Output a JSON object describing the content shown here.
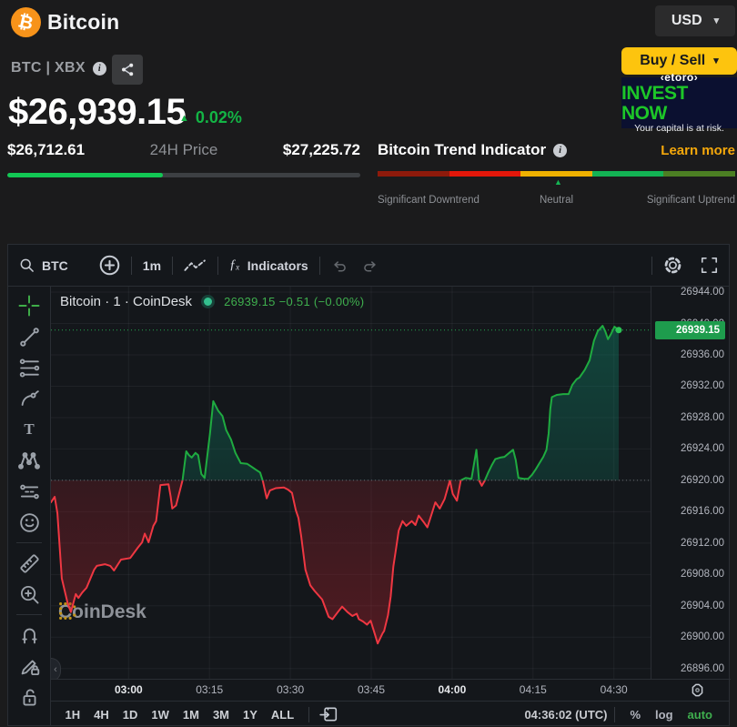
{
  "header": {
    "coin_name": "Bitcoin",
    "currency": "USD",
    "pair": "BTC | XBX",
    "price": "$26,939.15",
    "change_pct": "0.02%",
    "range_low": "$26,712.61",
    "range_label": "24H Price",
    "range_high": "$27,225.72",
    "range_fill_pct": 44,
    "buy_sell_label": "Buy / Sell",
    "ad": {
      "brand": "‹etoro›",
      "headline": "INVEST NOW",
      "disclaimer": "Your capital is at risk."
    }
  },
  "trend_indicator": {
    "title": "Bitcoin Trend Indicator",
    "learn_more": "Learn more",
    "left_label": "Significant Downtrend",
    "center_label": "Neutral",
    "right_label": "Significant Uptrend",
    "segment_colors": [
      "#8e1a0b",
      "#e3170a",
      "#eeb000",
      "#13b354",
      "#4c7f23"
    ],
    "marker_pct": 50.5
  },
  "chart": {
    "toolbar": {
      "symbol": "BTC",
      "interval": "1m",
      "fx_glyph": "ƒₓ",
      "indicators_label": "Indicators"
    },
    "legend": {
      "series_title": "Bitcoin · 1 · CoinDesk",
      "values": "26939.15 −0.51 (−0.00%)"
    },
    "watermark": "CoinDesk",
    "price_label": "26939.15",
    "left_tools": [
      "crosshair",
      "trend-line",
      "fib-retracement",
      "brush",
      "text",
      "xabcd-pattern",
      "forecast",
      "emoji",
      "ruler",
      "zoom-in",
      "magnet",
      "drawing-mode-lock",
      "lock-all-drawings"
    ],
    "bottom": {
      "ranges": [
        "1H",
        "4H",
        "1D",
        "1W",
        "1M",
        "3M",
        "1Y",
        "ALL"
      ],
      "clock": "04:36:02 (UTC)",
      "percent_label": "%",
      "log_label": "log",
      "auto_label": "auto"
    }
  },
  "icons": {
    "btc_glyph": "₿",
    "info_glyph": "i",
    "caret_glyph": "▾",
    "up_triangle": "▲",
    "text_tool_glyph": "T",
    "collapse_glyph": "‹"
  },
  "colors": {
    "bitcoin_orange": "#f7931a",
    "accent_green": "#13b545",
    "range_bar_green": "#12c854",
    "line_green": "#1fab40",
    "line_red": "#ef3742",
    "price_tag_green": "#1e9c4d",
    "learn_more_gold": "#f5a80b",
    "buy_sell_yellow": "#fdc40e",
    "ad_green": "#1dc628",
    "auto_green": "#3faf4e"
  },
  "chart_data": {
    "type": "line",
    "title": "Bitcoin · 1 · CoinDesk",
    "interval": "1m",
    "style": "baseline",
    "baseline": 26920.0,
    "last_price": 26939.15,
    "change": -0.51,
    "change_pct": "-0.00%",
    "grid": true,
    "x_unit": "minutes after 03:00 UTC",
    "x_ticks": [
      "03:00",
      "03:15",
      "03:30",
      "03:45",
      "04:00",
      "04:15",
      "04:30"
    ],
    "x_tick_minutes": [
      0,
      15,
      30,
      45,
      60,
      75,
      90
    ],
    "x_emphasized": [
      0,
      4
    ],
    "y_ticks": [
      26944,
      26940,
      26936,
      26932,
      26928,
      26924,
      26920,
      26916,
      26912,
      26908,
      26904,
      26900,
      26896
    ],
    "y_range": [
      26894.7,
      26944.7
    ],
    "x_range": [
      -14.4,
      96.8
    ],
    "series": [
      [
        -14.4,
        26917.2
      ],
      [
        -13.7,
        26917.9
      ],
      [
        -13.2,
        26915.8
      ],
      [
        -12.4,
        26907.5
      ],
      [
        -11.3,
        26904.3
      ],
      [
        -10.7,
        26903.2
      ],
      [
        -9.8,
        26905.5
      ],
      [
        -9.3,
        26905.0
      ],
      [
        -8.6,
        26905.7
      ],
      [
        -7.8,
        26906.3
      ],
      [
        -6.4,
        26908.6
      ],
      [
        -5.9,
        26909.1
      ],
      [
        -4.4,
        26909.3
      ],
      [
        -3.4,
        26909.1
      ],
      [
        -2.7,
        26908.5
      ],
      [
        -1.4,
        26909.9
      ],
      [
        0.3,
        26910.1
      ],
      [
        1.7,
        26911.4
      ],
      [
        2.5,
        26912.1
      ],
      [
        3.0,
        26913.2
      ],
      [
        3.7,
        26912.1
      ],
      [
        4.6,
        26914.2
      ],
      [
        5.1,
        26914.8
      ],
      [
        5.9,
        26919.4
      ],
      [
        7.4,
        26919.5
      ],
      [
        7.8,
        26917.9
      ],
      [
        8.1,
        26916.4
      ],
      [
        8.8,
        26916.8
      ],
      [
        10.0,
        26920.0
      ],
      [
        10.7,
        26923.7
      ],
      [
        11.2,
        26923.2
      ],
      [
        11.7,
        26922.9
      ],
      [
        12.4,
        26923.5
      ],
      [
        12.9,
        26923.2
      ],
      [
        13.5,
        26920.8
      ],
      [
        14.1,
        26920.3
      ],
      [
        15.1,
        26926.0
      ],
      [
        15.7,
        26930.1
      ],
      [
        16.6,
        26928.9
      ],
      [
        17.4,
        26928.2
      ],
      [
        18.1,
        26926.4
      ],
      [
        19.0,
        26925.2
      ],
      [
        19.8,
        26923.5
      ],
      [
        20.8,
        26922.2
      ],
      [
        22.0,
        26922.1
      ],
      [
        22.9,
        26921.7
      ],
      [
        23.5,
        26921.4
      ],
      [
        24.4,
        26921.0
      ],
      [
        24.9,
        26919.9
      ],
      [
        25.6,
        26917.7
      ],
      [
        26.2,
        26918.7
      ],
      [
        27.3,
        26919.0
      ],
      [
        28.8,
        26919.1
      ],
      [
        29.6,
        26918.8
      ],
      [
        30.3,
        26918.4
      ],
      [
        31.0,
        26916.2
      ],
      [
        31.5,
        26915.2
      ],
      [
        32.0,
        26912.9
      ],
      [
        32.8,
        26908.6
      ],
      [
        33.3,
        26907.5
      ],
      [
        33.7,
        26906.6
      ],
      [
        34.5,
        26905.9
      ],
      [
        35.9,
        26904.8
      ],
      [
        37.1,
        26902.6
      ],
      [
        37.8,
        26902.3
      ],
      [
        38.8,
        26903.2
      ],
      [
        39.6,
        26903.9
      ],
      [
        40.6,
        26903.2
      ],
      [
        41.5,
        26902.7
      ],
      [
        42.3,
        26903.0
      ],
      [
        42.7,
        26902.3
      ],
      [
        43.5,
        26902.0
      ],
      [
        44.2,
        26901.6
      ],
      [
        44.9,
        26902.1
      ],
      [
        45.7,
        26900.3
      ],
      [
        46.2,
        26899.2
      ],
      [
        47.1,
        26900.5
      ],
      [
        47.4,
        26900.8
      ],
      [
        48.1,
        26902.8
      ],
      [
        48.6,
        26905.2
      ],
      [
        49.1,
        26909.0
      ],
      [
        49.6,
        26911.3
      ],
      [
        50.1,
        26913.6
      ],
      [
        50.8,
        26914.8
      ],
      [
        51.5,
        26914.2
      ],
      [
        52.5,
        26914.8
      ],
      [
        53.2,
        26914.3
      ],
      [
        53.8,
        26915.5
      ],
      [
        54.7,
        26914.7
      ],
      [
        55.4,
        26914.0
      ],
      [
        56.2,
        26915.7
      ],
      [
        56.9,
        26917.2
      ],
      [
        57.7,
        26916.4
      ],
      [
        58.6,
        26917.6
      ],
      [
        59.6,
        26920.0
      ],
      [
        60.1,
        26918.3
      ],
      [
        60.9,
        26917.4
      ],
      [
        61.6,
        26920.0
      ],
      [
        62.5,
        26920.3
      ],
      [
        63.6,
        26920.2
      ],
      [
        64.5,
        26923.9
      ],
      [
        65.0,
        26920.0
      ],
      [
        65.5,
        26919.3
      ],
      [
        66.0,
        26919.9
      ],
      [
        66.7,
        26921.0
      ],
      [
        67.4,
        26922.0
      ],
      [
        68.0,
        26922.7
      ],
      [
        68.9,
        26922.9
      ],
      [
        69.7,
        26923.0
      ],
      [
        70.6,
        26923.5
      ],
      [
        71.3,
        26923.9
      ],
      [
        71.8,
        26922.6
      ],
      [
        72.3,
        26920.3
      ],
      [
        73.3,
        26920.2
      ],
      [
        74.1,
        26920.2
      ],
      [
        74.8,
        26920.7
      ],
      [
        75.5,
        26921.4
      ],
      [
        76.2,
        26922.2
      ],
      [
        76.9,
        26923.0
      ],
      [
        77.5,
        26923.9
      ],
      [
        77.9,
        26926.0
      ],
      [
        78.2,
        26929.1
      ],
      [
        78.5,
        26930.6
      ],
      [
        79.4,
        26930.9
      ],
      [
        80.6,
        26931.0
      ],
      [
        81.6,
        26931.0
      ],
      [
        82.3,
        26932.2
      ],
      [
        83.1,
        26932.9
      ],
      [
        83.6,
        26933.1
      ],
      [
        84.6,
        26934.1
      ],
      [
        85.5,
        26935.3
      ],
      [
        86.3,
        26937.8
      ],
      [
        87.0,
        26939.0
      ],
      [
        87.9,
        26939.7
      ],
      [
        88.4,
        26939.0
      ],
      [
        88.9,
        26938.0
      ],
      [
        89.5,
        26938.7
      ],
      [
        90.1,
        26939.6
      ],
      [
        90.9,
        26939.15
      ]
    ]
  }
}
